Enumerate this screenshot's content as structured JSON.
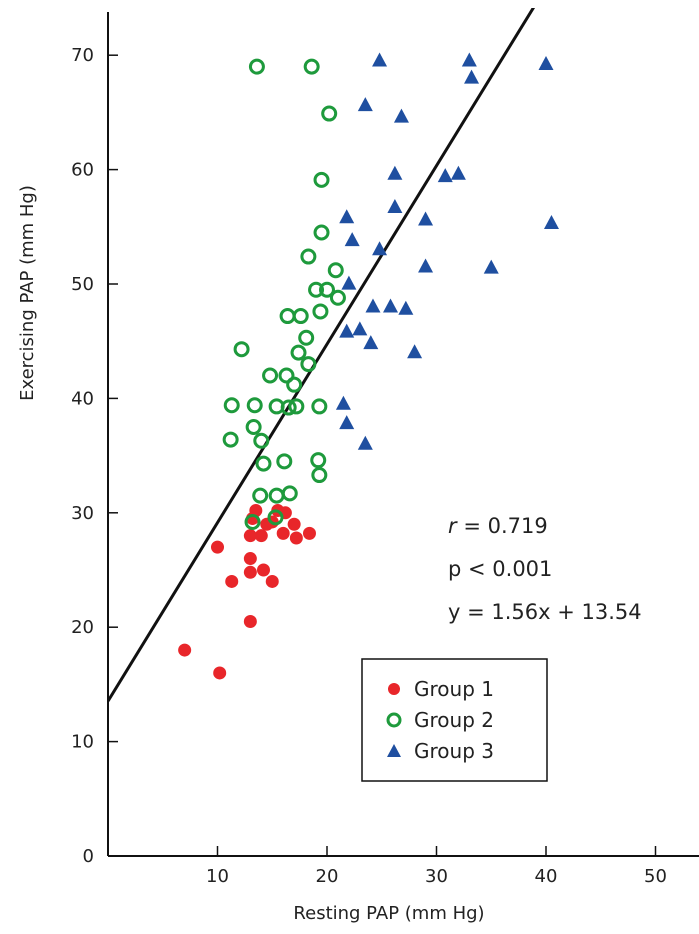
{
  "chart_data": {
    "type": "scatter",
    "xlabel": "Resting PAP (mm Hg)",
    "ylabel": "Exercising PAP (mm Hg)",
    "xlim": [
      0,
      52
    ],
    "ylim": [
      0,
      73
    ],
    "x_ticks": [
      10,
      20,
      30,
      40,
      50
    ],
    "y_ticks": [
      0,
      10,
      20,
      30,
      40,
      50,
      60,
      70
    ],
    "grid": false,
    "legend_position": "bottom-right",
    "annotations": {
      "r_symbol": "r",
      "r_value": " = 0.719",
      "p": "p < 0.001",
      "equation": "y = 1.56x + 13.54"
    },
    "regression": {
      "slope": 1.56,
      "intercept": 13.54
    },
    "series": [
      {
        "name": "Group 1",
        "marker": "circle-filled",
        "color": "#e8262a",
        "points": [
          [
            7,
            18
          ],
          [
            10,
            27
          ],
          [
            10.2,
            16
          ],
          [
            11.3,
            24
          ],
          [
            13,
            20.5
          ],
          [
            13,
            24.8
          ],
          [
            13,
            26
          ],
          [
            13,
            28
          ],
          [
            13.2,
            29.5
          ],
          [
            13.5,
            30.2
          ],
          [
            14,
            28
          ],
          [
            14.2,
            25
          ],
          [
            14.5,
            29
          ],
          [
            15,
            24
          ],
          [
            15,
            29.2
          ],
          [
            15.5,
            30.2
          ],
          [
            16,
            28.2
          ],
          [
            16.2,
            30
          ],
          [
            17,
            29
          ],
          [
            17.2,
            27.8
          ],
          [
            18.4,
            28.2
          ]
        ]
      },
      {
        "name": "Group 2",
        "marker": "circle-open",
        "color": "#1e9a3c",
        "points": [
          [
            13.6,
            69
          ],
          [
            18.6,
            69
          ],
          [
            20.2,
            64.9
          ],
          [
            19.5,
            59.1
          ],
          [
            19.5,
            54.5
          ],
          [
            20.8,
            51.2
          ],
          [
            18.3,
            52.4
          ],
          [
            19,
            49.5
          ],
          [
            20,
            49.5
          ],
          [
            21,
            48.8
          ],
          [
            19.4,
            47.6
          ],
          [
            16.4,
            47.2
          ],
          [
            17.6,
            47.2
          ],
          [
            18.1,
            45.3
          ],
          [
            12.2,
            44.3
          ],
          [
            17.4,
            44
          ],
          [
            18.3,
            43
          ],
          [
            14.8,
            42
          ],
          [
            16.3,
            42
          ],
          [
            17,
            41.2
          ],
          [
            11.3,
            39.4
          ],
          [
            13.4,
            39.4
          ],
          [
            15.4,
            39.3
          ],
          [
            16.5,
            39.2
          ],
          [
            17.2,
            39.3
          ],
          [
            19.3,
            39.3
          ],
          [
            13.3,
            37.5
          ],
          [
            11.2,
            36.4
          ],
          [
            14,
            36.3
          ],
          [
            14.2,
            34.3
          ],
          [
            16.1,
            34.5
          ],
          [
            19.2,
            34.6
          ],
          [
            19.3,
            33.3
          ],
          [
            13.9,
            31.5
          ],
          [
            15.4,
            31.5
          ],
          [
            16.6,
            31.7
          ],
          [
            13.2,
            29.2
          ],
          [
            15.3,
            29.6
          ]
        ]
      },
      {
        "name": "Group 3",
        "marker": "triangle-filled",
        "color": "#1f4fa0",
        "points": [
          [
            24.8,
            69.5
          ],
          [
            33,
            69.5
          ],
          [
            40,
            69.2
          ],
          [
            33.2,
            68
          ],
          [
            23.5,
            65.6
          ],
          [
            26.8,
            64.6
          ],
          [
            26.2,
            59.6
          ],
          [
            30.8,
            59.4
          ],
          [
            32,
            59.6
          ],
          [
            26.2,
            56.7
          ],
          [
            21.8,
            55.8
          ],
          [
            29,
            55.6
          ],
          [
            40.5,
            55.3
          ],
          [
            22.3,
            53.8
          ],
          [
            24.8,
            53
          ],
          [
            29,
            51.5
          ],
          [
            35,
            51.4
          ],
          [
            22,
            50
          ],
          [
            24.2,
            48
          ],
          [
            25.8,
            48
          ],
          [
            27.2,
            47.8
          ],
          [
            21.8,
            45.8
          ],
          [
            23,
            46
          ],
          [
            24,
            44.8
          ],
          [
            28,
            44
          ],
          [
            21.5,
            39.5
          ],
          [
            21.8,
            37.8
          ],
          [
            23.5,
            36
          ]
        ]
      }
    ]
  }
}
